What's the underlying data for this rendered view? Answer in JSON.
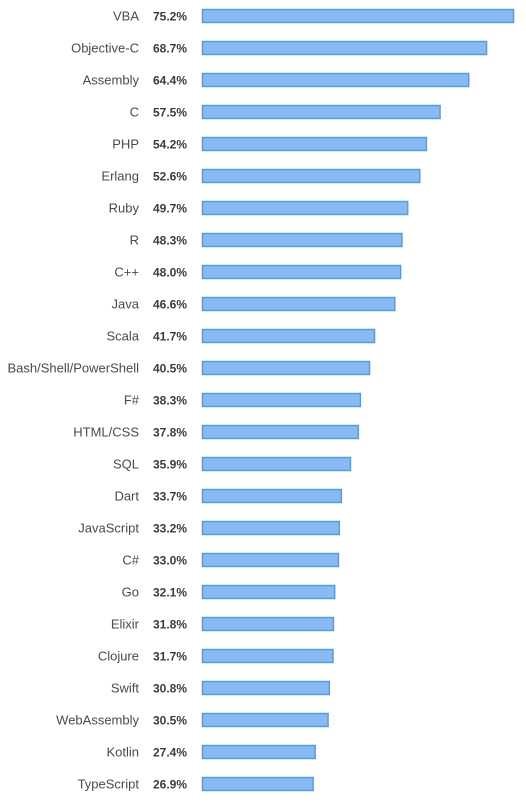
{
  "chart_data": {
    "type": "bar",
    "orientation": "horizontal",
    "title": "",
    "xlabel": "",
    "ylabel": "",
    "xlim": [
      0,
      75.2
    ],
    "grid": false,
    "legend": "none",
    "bar_color": "#88bbf5",
    "bar_border_color": "#5b9bd5",
    "categories": [
      "VBA",
      "Objective-C",
      "Assembly",
      "C",
      "PHP",
      "Erlang",
      "Ruby",
      "R",
      "C++",
      "Java",
      "Scala",
      "Bash/Shell/PowerShell",
      "F#",
      "HTML/CSS",
      "SQL",
      "Dart",
      "JavaScript",
      "C#",
      "Go",
      "Elixir",
      "Clojure",
      "Swift",
      "WebAssembly",
      "Kotlin",
      "TypeScript"
    ],
    "values": [
      75.2,
      68.7,
      64.4,
      57.5,
      54.2,
      52.6,
      49.7,
      48.3,
      48.0,
      46.6,
      41.7,
      40.5,
      38.3,
      37.8,
      35.9,
      33.7,
      33.2,
      33.0,
      32.1,
      31.8,
      31.7,
      30.8,
      30.5,
      27.4,
      26.9
    ],
    "value_labels": [
      "75.2%",
      "68.7%",
      "64.4%",
      "57.5%",
      "54.2%",
      "52.6%",
      "49.7%",
      "48.3%",
      "48.0%",
      "46.6%",
      "41.7%",
      "40.5%",
      "38.3%",
      "37.8%",
      "35.9%",
      "33.7%",
      "33.2%",
      "33.0%",
      "32.1%",
      "31.8%",
      "31.7%",
      "30.8%",
      "30.5%",
      "27.4%",
      "26.9%"
    ]
  }
}
